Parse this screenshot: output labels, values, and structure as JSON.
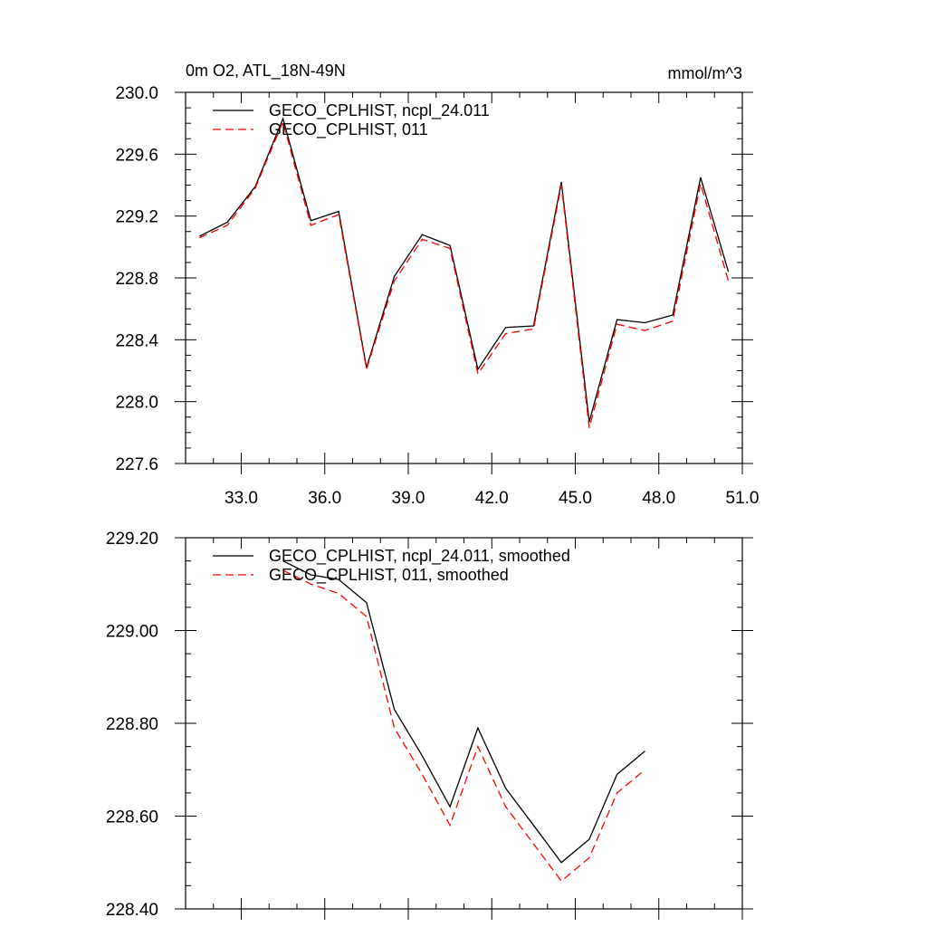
{
  "chart_data": [
    {
      "type": "line",
      "title": "0m O2, ATL_18N-49N",
      "units": "mmol/m^3",
      "xlim": [
        31,
        51
      ],
      "ylim": [
        227.6,
        230.0
      ],
      "x_ticks": [
        "33.0",
        "36.0",
        "39.0",
        "42.0",
        "45.0",
        "48.0",
        "51.0"
      ],
      "y_ticks": [
        "227.6",
        "228.0",
        "228.4",
        "228.8",
        "229.2",
        "229.6",
        "230.0"
      ],
      "x": [
        31.5,
        32.5,
        33.5,
        34.5,
        35.5,
        36.5,
        37.5,
        38.5,
        39.5,
        40.5,
        41.5,
        42.5,
        43.5,
        44.5,
        45.5,
        46.5,
        47.5,
        48.5,
        49.5,
        50.5
      ],
      "series": [
        {
          "name": "GECO_CPLHIST, ncpl_24.011",
          "color": "#000000",
          "dash": "solid",
          "values": [
            229.07,
            229.16,
            229.39,
            229.83,
            229.17,
            229.23,
            228.22,
            228.81,
            229.08,
            229.01,
            228.21,
            228.48,
            228.49,
            229.42,
            227.87,
            228.53,
            228.51,
            228.56,
            229.45,
            228.84
          ]
        },
        {
          "name": "GECO_CPLHIST, 011",
          "color": "#ff0000",
          "dash": "dashed",
          "values": [
            229.06,
            229.14,
            229.38,
            229.81,
            229.14,
            229.21,
            228.21,
            228.78,
            229.05,
            228.99,
            228.18,
            228.44,
            228.47,
            229.4,
            227.83,
            228.5,
            228.46,
            228.52,
            229.41,
            228.78
          ]
        }
      ],
      "legend": "top-left",
      "grid": false
    },
    {
      "type": "line",
      "xlim": [
        31,
        51
      ],
      "ylim": [
        228.4,
        229.2
      ],
      "y_ticks": [
        "228.40",
        "228.60",
        "228.80",
        "229.00",
        "229.20"
      ],
      "x": [
        34.5,
        35.5,
        36.5,
        37.5,
        38.5,
        39.5,
        40.5,
        41.5,
        42.5,
        43.5,
        44.5,
        45.5,
        46.5,
        47.5
      ],
      "series": [
        {
          "name": "GECO_CPLHIST, ncpl_24.011, smoothed",
          "color": "#000000",
          "dash": "solid",
          "values": [
            229.15,
            229.12,
            229.11,
            229.06,
            228.83,
            228.73,
            228.62,
            228.79,
            228.66,
            228.58,
            228.5,
            228.55,
            228.69,
            228.74
          ]
        },
        {
          "name": "GECO_CPLHIST, 011, smoothed",
          "color": "#ff0000",
          "dash": "dashed",
          "values": [
            229.13,
            229.1,
            229.08,
            229.03,
            228.79,
            228.69,
            228.58,
            228.75,
            228.62,
            228.54,
            228.46,
            228.51,
            228.65,
            228.7
          ]
        }
      ],
      "legend": "top-left",
      "grid": false
    }
  ]
}
